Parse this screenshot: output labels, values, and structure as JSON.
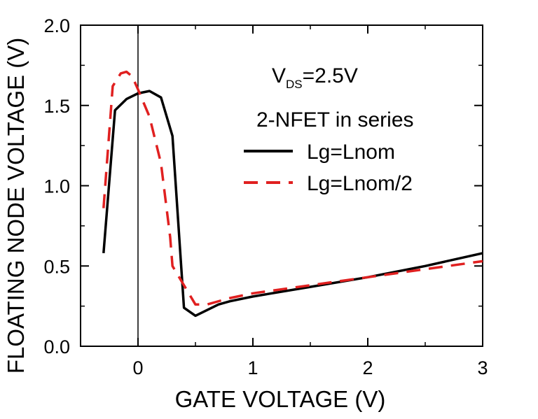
{
  "chart_data": {
    "type": "line",
    "xlabel": "GATE VOLTAGE (V)",
    "ylabel": "FLOATING NODE VOLTAGE (V)",
    "xlim": [
      -0.5,
      3
    ],
    "ylim": [
      0,
      2
    ],
    "x_ticks": [
      0,
      1,
      2,
      3
    ],
    "x_tick_labels": [
      "0",
      "1",
      "2",
      "3"
    ],
    "y_ticks": [
      0,
      0.5,
      1,
      1.5,
      2
    ],
    "y_tick_labels": [
      "0.0",
      "0.5",
      "1.0",
      "1.5",
      "2.0"
    ],
    "grid": false,
    "reference_line_x": 0,
    "legend_position": "top-right",
    "annotations": {
      "vds_main": "V",
      "vds_sub": "DS",
      "vds_value": "=2.5V",
      "config": "2-NFET in series"
    },
    "series": [
      {
        "name": "Lg=Lnom",
        "color": "#000000",
        "dash": "solid",
        "points": [
          [
            -0.3,
            0.58
          ],
          [
            -0.2,
            1.47
          ],
          [
            -0.1,
            1.54
          ],
          [
            0.0,
            1.575
          ],
          [
            0.1,
            1.59
          ],
          [
            0.2,
            1.55
          ],
          [
            0.3,
            1.31
          ],
          [
            0.4,
            0.24
          ],
          [
            0.5,
            0.19
          ],
          [
            0.7,
            0.26
          ],
          [
            0.8,
            0.28
          ],
          [
            1.0,
            0.31
          ],
          [
            1.5,
            0.37
          ],
          [
            2.0,
            0.43
          ],
          [
            2.5,
            0.5
          ],
          [
            3.0,
            0.58
          ]
        ]
      },
      {
        "name": "Lg=Lnom/2",
        "color": "#e02020",
        "dash": "dashed",
        "points": [
          [
            -0.3,
            0.86
          ],
          [
            -0.22,
            1.62
          ],
          [
            -0.15,
            1.7
          ],
          [
            -0.1,
            1.71
          ],
          [
            -0.05,
            1.68
          ],
          [
            0.0,
            1.6
          ],
          [
            0.1,
            1.43
          ],
          [
            0.2,
            1.14
          ],
          [
            0.28,
            0.68
          ],
          [
            0.3,
            0.5
          ],
          [
            0.4,
            0.38
          ],
          [
            0.5,
            0.26
          ],
          [
            0.6,
            0.26
          ],
          [
            0.8,
            0.3
          ],
          [
            1.0,
            0.33
          ],
          [
            1.5,
            0.38
          ],
          [
            2.0,
            0.43
          ],
          [
            2.5,
            0.48
          ],
          [
            3.0,
            0.53
          ]
        ]
      }
    ]
  }
}
